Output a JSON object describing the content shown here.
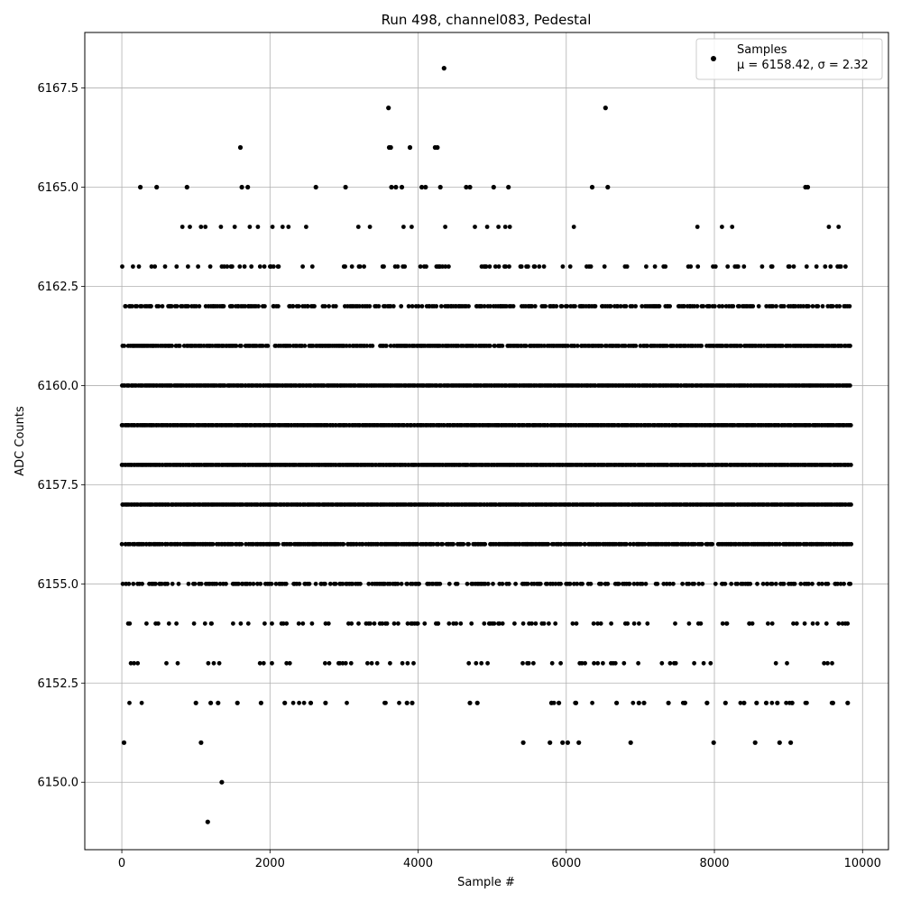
{
  "chart_data": {
    "type": "scatter",
    "title": "Run 498, channel083, Pedestal",
    "xlabel": "Sample #",
    "ylabel": "ADC Counts",
    "xlim": [
      -500,
      10350
    ],
    "ylim": [
      6148.3,
      6168.9
    ],
    "xticks": [
      0,
      2000,
      4000,
      6000,
      8000,
      10000
    ],
    "xtick_labels": [
      "0",
      "2000",
      "4000",
      "6000",
      "8000",
      "10000"
    ],
    "yticks": [
      6150.0,
      6152.5,
      6155.0,
      6157.5,
      6160.0,
      6162.5,
      6165.0,
      6167.5
    ],
    "ytick_labels": [
      "6150.0",
      "6152.5",
      "6155.0",
      "6157.5",
      "6160.0",
      "6162.5",
      "6165.0",
      "6167.5"
    ],
    "grid": true,
    "legend": {
      "position": "top-right",
      "label": "Samples",
      "stats": "μ = 6158.42, σ = 2.32"
    },
    "marker_color": "#000000",
    "series": [
      {
        "name": "Samples",
        "x_range": [
          0,
          9850
        ],
        "bands": [
          {
            "y": 6162,
            "density": 0.55
          },
          {
            "y": 6161,
            "density": 0.8
          },
          {
            "y": 6160,
            "density": 1.0
          },
          {
            "y": 6159,
            "density": 1.0
          },
          {
            "y": 6158,
            "density": 1.0
          },
          {
            "y": 6157,
            "density": 1.0
          },
          {
            "y": 6156,
            "density": 0.85
          },
          {
            "y": 6155,
            "density": 0.5
          },
          {
            "y": 6154,
            "density": 0.22
          },
          {
            "y": 6163,
            "density": 0.18
          },
          {
            "y": 6153,
            "density": 0.1
          },
          {
            "y": 6164,
            "density": 0.06
          },
          {
            "y": 6152,
            "density": 0.04
          }
        ],
        "points": [
          [
            250,
            6165
          ],
          [
            470,
            6165
          ],
          [
            880,
            6165
          ],
          [
            1600,
            6166
          ],
          [
            1620,
            6165
          ],
          [
            1700,
            6165
          ],
          [
            2620,
            6165
          ],
          [
            3020,
            6165
          ],
          [
            3600,
            6167
          ],
          [
            3610,
            6166
          ],
          [
            3630,
            6166
          ],
          [
            3640,
            6165
          ],
          [
            3700,
            6165
          ],
          [
            3780,
            6165
          ],
          [
            3890,
            6166
          ],
          [
            4050,
            6165
          ],
          [
            4100,
            6165
          ],
          [
            4230,
            6166
          ],
          [
            4260,
            6166
          ],
          [
            4300,
            6165
          ],
          [
            4350,
            6168
          ],
          [
            4650,
            6165
          ],
          [
            4700,
            6165
          ],
          [
            5020,
            6165
          ],
          [
            5220,
            6165
          ],
          [
            6350,
            6165
          ],
          [
            6530,
            6167
          ],
          [
            6560,
            6165
          ],
          [
            9230,
            6165
          ],
          [
            9260,
            6165
          ],
          [
            30,
            6151
          ],
          [
            1070,
            6151
          ],
          [
            5420,
            6151
          ],
          [
            5780,
            6151
          ],
          [
            5950,
            6151
          ],
          [
            6020,
            6151
          ],
          [
            6170,
            6151
          ],
          [
            6870,
            6151
          ],
          [
            7990,
            6151
          ],
          [
            8550,
            6151
          ],
          [
            8880,
            6151
          ],
          [
            9030,
            6151
          ],
          [
            1350,
            6150
          ],
          [
            1160,
            6149
          ],
          [
            1000,
            6152
          ],
          [
            1200,
            6152
          ],
          [
            1300,
            6152
          ],
          [
            1560,
            6152
          ],
          [
            1880,
            6152
          ],
          [
            2200,
            6152
          ],
          [
            2550,
            6152
          ],
          [
            2750,
            6152
          ],
          [
            3850,
            6152
          ],
          [
            3920,
            6152
          ],
          [
            4700,
            6152
          ],
          [
            4800,
            6152
          ],
          [
            5800,
            6152
          ],
          [
            5900,
            6152
          ],
          [
            6130,
            6152
          ],
          [
            6680,
            6152
          ],
          [
            6980,
            6152
          ],
          [
            7050,
            6152
          ],
          [
            7380,
            6152
          ],
          [
            7600,
            6152
          ],
          [
            7900,
            6152
          ],
          [
            8150,
            6152
          ],
          [
            8400,
            6152
          ],
          [
            8570,
            6152
          ],
          [
            8700,
            6152
          ],
          [
            8850,
            6152
          ],
          [
            9050,
            6152
          ],
          [
            9600,
            6152
          ],
          [
            9800,
            6152
          ]
        ]
      }
    ]
  }
}
